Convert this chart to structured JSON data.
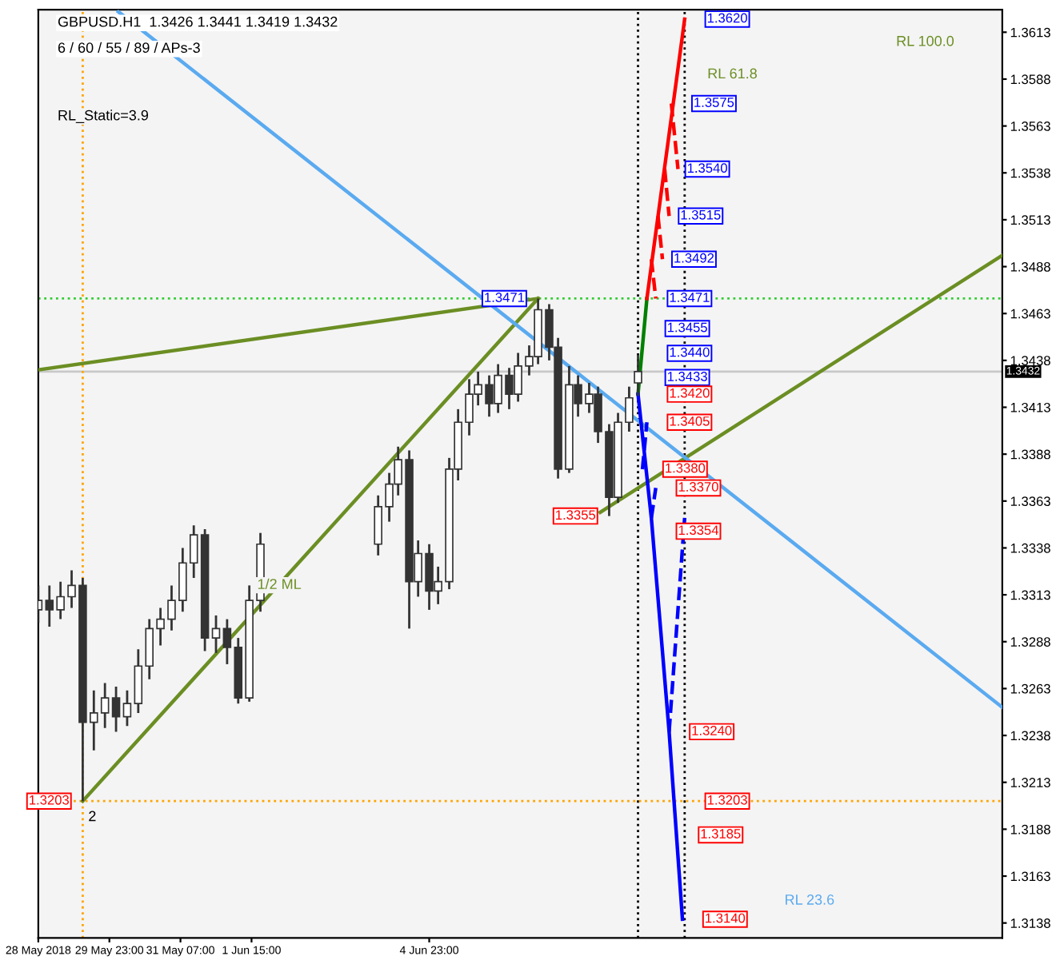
{
  "chart_data": {
    "type": "candlestick",
    "title": "GBPUSD.H1  1.3426 1.3441 1.3419 1.3432",
    "subtitle": "6 / 60 / 55 / 89 / APs-3",
    "x": [
      "2018-05-28T15:00",
      "2018-05-28T20:00",
      "2018-05-29T01:00",
      "2018-05-29T06:00",
      "2018-05-29T11:00",
      "2018-05-29T16:00",
      "2018-05-29T21:00",
      "2018-05-30T02:00",
      "2018-05-30T07:00",
      "2018-05-30T12:00",
      "2018-05-30T17:00",
      "2018-05-30T22:00",
      "2018-05-31T03:00",
      "2018-05-31T08:00",
      "2018-05-31T13:00",
      "2018-05-31T18:00",
      "2018-05-31T23:00",
      "2018-06-01T04:00",
      "2018-06-01T09:00",
      "2018-06-01T14:00",
      "2018-06-01T19:00",
      "2018-06-04T00:00",
      "2018-06-04T05:00",
      "2018-06-04T09:00",
      "2018-06-04T14:00",
      "2018-06-04T18:00",
      "2018-06-04T23:00",
      "2018-06-05T03:00",
      "2018-06-05T08:00",
      "2018-06-05T12:00",
      "2018-06-05T17:00",
      "2018-06-05T21:00",
      "2018-06-06T02:00",
      "2018-06-06T06:00",
      "2018-06-06T11:00",
      "2018-06-06T15:00",
      "2018-06-06T20:00",
      "2018-06-07T00:00",
      "2018-06-07T05:00",
      "2018-06-07T09:00",
      "2018-06-07T14:00",
      "2018-06-07T18:00",
      "2018-06-07T23:00",
      "2018-06-08T03:00",
      "2018-06-08T08:00",
      "2018-06-08T12:00",
      "2018-06-08T17:00",
      "2018-06-08T21:00"
    ],
    "ohlc": [
      [
        1.3305,
        1.3318,
        1.3298,
        1.331
      ],
      [
        1.331,
        1.3318,
        1.3296,
        1.3305
      ],
      [
        1.3305,
        1.332,
        1.33,
        1.3312
      ],
      [
        1.3312,
        1.3326,
        1.3306,
        1.3318
      ],
      [
        1.3318,
        1.3322,
        1.3203,
        1.3245
      ],
      [
        1.3245,
        1.3262,
        1.323,
        1.325
      ],
      [
        1.325,
        1.3266,
        1.3242,
        1.3258
      ],
      [
        1.3258,
        1.3264,
        1.324,
        1.3248
      ],
      [
        1.3248,
        1.3262,
        1.3243,
        1.3255
      ],
      [
        1.3255,
        1.3284,
        1.325,
        1.3275
      ],
      [
        1.3275,
        1.33,
        1.3268,
        1.3295
      ],
      [
        1.3295,
        1.3306,
        1.3286,
        1.33
      ],
      [
        1.33,
        1.3318,
        1.3294,
        1.331
      ],
      [
        1.331,
        1.3338,
        1.3304,
        1.333
      ],
      [
        1.333,
        1.335,
        1.3322,
        1.3345
      ],
      [
        1.3345,
        1.3348,
        1.3283,
        1.329
      ],
      [
        1.329,
        1.3302,
        1.3282,
        1.3295
      ],
      [
        1.3295,
        1.33,
        1.3276,
        1.3285
      ],
      [
        1.3285,
        1.329,
        1.3255,
        1.3258
      ],
      [
        1.3258,
        1.3318,
        1.3256,
        1.331
      ],
      [
        1.331,
        1.3346,
        1.3304,
        1.334
      ],
      [
        1.334,
        1.3366,
        1.3334,
        1.336
      ],
      [
        1.336,
        1.3378,
        1.3352,
        1.3372
      ],
      [
        1.3372,
        1.3392,
        1.3366,
        1.3385
      ],
      [
        1.3385,
        1.339,
        1.3295,
        1.332
      ],
      [
        1.332,
        1.3342,
        1.3312,
        1.3335
      ],
      [
        1.3335,
        1.334,
        1.3305,
        1.3315
      ],
      [
        1.3315,
        1.3328,
        1.3308,
        1.332
      ],
      [
        1.332,
        1.3386,
        1.3316,
        1.338
      ],
      [
        1.338,
        1.3412,
        1.3374,
        1.3405
      ],
      [
        1.3405,
        1.3428,
        1.3398,
        1.342
      ],
      [
        1.342,
        1.3432,
        1.3414,
        1.3425
      ],
      [
        1.3425,
        1.343,
        1.3408,
        1.3415
      ],
      [
        1.3415,
        1.3436,
        1.341,
        1.343
      ],
      [
        1.343,
        1.3434,
        1.3412,
        1.342
      ],
      [
        1.342,
        1.3442,
        1.3416,
        1.3435
      ],
      [
        1.3435,
        1.3446,
        1.343,
        1.344
      ],
      [
        1.344,
        1.3471,
        1.3436,
        1.3465
      ],
      [
        1.3465,
        1.3468,
        1.3438,
        1.3445
      ],
      [
        1.3445,
        1.345,
        1.3375,
        1.338
      ],
      [
        1.338,
        1.3435,
        1.3378,
        1.3425
      ],
      [
        1.3425,
        1.343,
        1.3408,
        1.3415
      ],
      [
        1.3415,
        1.3426,
        1.341,
        1.342
      ],
      [
        1.342,
        1.3424,
        1.3394,
        1.34
      ],
      [
        1.34,
        1.3404,
        1.3355,
        1.3365
      ],
      [
        1.3365,
        1.341,
        1.3362,
        1.3405
      ],
      [
        1.3405,
        1.3424,
        1.34,
        1.3418
      ],
      [
        1.3426,
        1.3441,
        1.3419,
        1.3432
      ]
    ],
    "xlim": [
      "2018-05-28T15:00",
      "2018-06-15T17:00"
    ],
    "xticks": [
      {
        "value": "2018-05-28T15:00",
        "label": "28 May 2018"
      },
      {
        "value": "2018-05-29T23:00",
        "label": "29 May 23:00"
      },
      {
        "value": "2018-05-31T07:00",
        "label": "31 May 07:00"
      },
      {
        "value": "2018-06-01T15:00",
        "label": "1 Jun 15:00"
      },
      {
        "value": "2018-06-04T23:00",
        "label": "4 Jun 23:00"
      }
    ],
    "ylim": [
      1.313,
      1.3625
    ],
    "yticks": [
      1.3138,
      1.3163,
      1.3188,
      1.3213,
      1.3238,
      1.3263,
      1.3288,
      1.3313,
      1.3338,
      1.3363,
      1.3388,
      1.3413,
      1.3438,
      1.3463,
      1.3488,
      1.3513,
      1.3538,
      1.3563,
      1.3588,
      1.3613
    ],
    "grid": false,
    "series": [
      {
        "type": "line",
        "color": "#6b8e23",
        "x": [
          "2018-05-28T15:00",
          "2018-06-07T00:00"
        ],
        "values": [
          1.3433,
          1.3471
        ]
      },
      {
        "type": "line",
        "color": "#6b8e23",
        "x": [
          "2018-05-29T11:00",
          "2018-06-07T00:00"
        ],
        "values": [
          1.3203,
          1.3471
        ]
      },
      {
        "type": "line",
        "color": "#6b8e23",
        "x": [
          "2018-06-08T04:00",
          "2018-06-15T17:00"
        ],
        "values": [
          1.3357,
          1.3494
        ]
      },
      {
        "type": "line",
        "color": "#5aaaf0",
        "x": [
          "2018-05-30T03:00",
          "2018-06-15T17:00"
        ],
        "values": [
          1.3624,
          1.3253
        ]
      },
      {
        "type": "line",
        "color": "#008000",
        "x": [
          "2018-06-08T21:00",
          "2018-06-09T01:00"
        ],
        "values": [
          1.342,
          1.3471
        ]
      },
      {
        "type": "line",
        "color": "#ff0000",
        "x": [
          "2018-06-09T01:00",
          "2018-06-09T18:00"
        ],
        "values": [
          1.3471,
          1.362
        ]
      },
      {
        "type": "line",
        "color": "#ff0000",
        "line_style": "dashed",
        "x": [
          "2018-06-09T03:00",
          "2018-06-09T05:00",
          null,
          "2018-06-09T06:00",
          "2018-06-09T08:00",
          null,
          "2018-06-09T09:00",
          "2018-06-09T11:00",
          null,
          "2018-06-09T12:00",
          "2018-06-09T15:00"
        ],
        "values": [
          1.3492,
          1.3471,
          null,
          1.3515,
          1.3492,
          null,
          1.354,
          1.3515,
          null,
          1.3575,
          1.354
        ]
      },
      {
        "type": "line",
        "color": "#0000ff",
        "x": [
          "2018-06-08T21:00",
          "2018-06-09T03:00",
          "2018-06-09T11:00",
          "2018-06-09T17:00"
        ],
        "values": [
          1.342,
          1.3354,
          1.324,
          1.314
        ]
      },
      {
        "type": "line",
        "color": "#0000ff",
        "line_style": "dashed",
        "x": [
          "2018-06-08T23:00",
          "2018-06-09T01:00",
          null,
          "2018-06-09T03:00",
          "2018-06-09T05:00",
          null,
          "2018-06-09T11:00",
          "2018-06-09T18:00"
        ],
        "values": [
          1.338,
          1.3405,
          null,
          1.3354,
          1.337,
          null,
          1.324,
          1.3354
        ]
      }
    ],
    "ref_lines": [
      {
        "axis": "y",
        "value": 1.3432,
        "label": "1.3432",
        "color": "#c8c8c8",
        "line_style": "solid"
      },
      {
        "axis": "x",
        "value": "2018-06-08T21:00",
        "color": "#000000",
        "line_style": "dotted"
      },
      {
        "axis": "x",
        "value": "2018-06-09T18:00",
        "color": "#000000",
        "line_style": "dotted"
      },
      {
        "axis": "x",
        "value": "2018-05-29T11:00",
        "color": "#ffa500",
        "line_style": "dotted"
      },
      {
        "axis": "y",
        "value": 1.3203,
        "color": "#ffa500",
        "line_style": "dotted"
      },
      {
        "axis": "y",
        "value": 1.3471,
        "color": "#32cd32",
        "line_style": "dotted"
      }
    ],
    "annotations": [
      "RL_Static=3.9",
      "2",
      "1/2 ML",
      "RL 23.6",
      "RL 61.8",
      "RL 100.0",
      {
        "text": "1.3620",
        "x": "2018-06-09T18:00",
        "y": 1.362
      },
      {
        "text": "1.3575",
        "x": "2018-06-09T12:00",
        "y": 1.3575
      },
      {
        "text": "1.3540",
        "x": "2018-06-09T09:00",
        "y": 1.354
      },
      {
        "text": "1.3515",
        "x": "2018-06-09T06:00",
        "y": 1.3515
      },
      {
        "text": "1.3492",
        "x": "2018-06-09T03:00",
        "y": 1.3492
      },
      {
        "text": "1.3471",
        "x": "2018-06-09T01:00",
        "y": 1.3471
      },
      {
        "text": "1.3455",
        "x": "2018-06-09T00:00",
        "y": 1.3455
      },
      {
        "text": "1.3440",
        "x": "2018-06-08T23:00",
        "y": 1.344
      },
      {
        "text": "1.3433",
        "x": "2018-06-08T22:00",
        "y": 1.3433
      },
      {
        "text": "1.3420",
        "x": "2018-06-08T21:00",
        "y": 1.342
      },
      {
        "text": "1.3405",
        "x": "2018-06-09T01:00",
        "y": 1.3405
      },
      {
        "text": "1.3380",
        "x": "2018-06-08T23:00",
        "y": 1.338
      },
      {
        "text": "1.3370",
        "x": "2018-06-09T05:00",
        "y": 1.337
      },
      {
        "text": "1.3354",
        "x": "2018-06-09T03:00",
        "y": 1.3354
      },
      {
        "text": "1.3240",
        "x": "2018-06-09T11:00",
        "y": 1.324
      },
      {
        "text": "1.3203",
        "x": "2018-06-09T18:00",
        "y": 1.3203
      },
      {
        "text": "1.3185",
        "x": "2018-06-09T15:00",
        "y": 1.3185
      },
      {
        "text": "1.3140",
        "x": "2018-06-09T17:00",
        "y": 1.314
      },
      {
        "text": "1.3471",
        "x": "2018-06-07T00:00",
        "y": 1.3471
      },
      {
        "text": "1.3355",
        "x": "2018-06-08T08:00",
        "y": 1.3355
      },
      {
        "text": "1.3203",
        "x": "2018-05-29T11:00",
        "y": 1.3203
      }
    ]
  }
}
